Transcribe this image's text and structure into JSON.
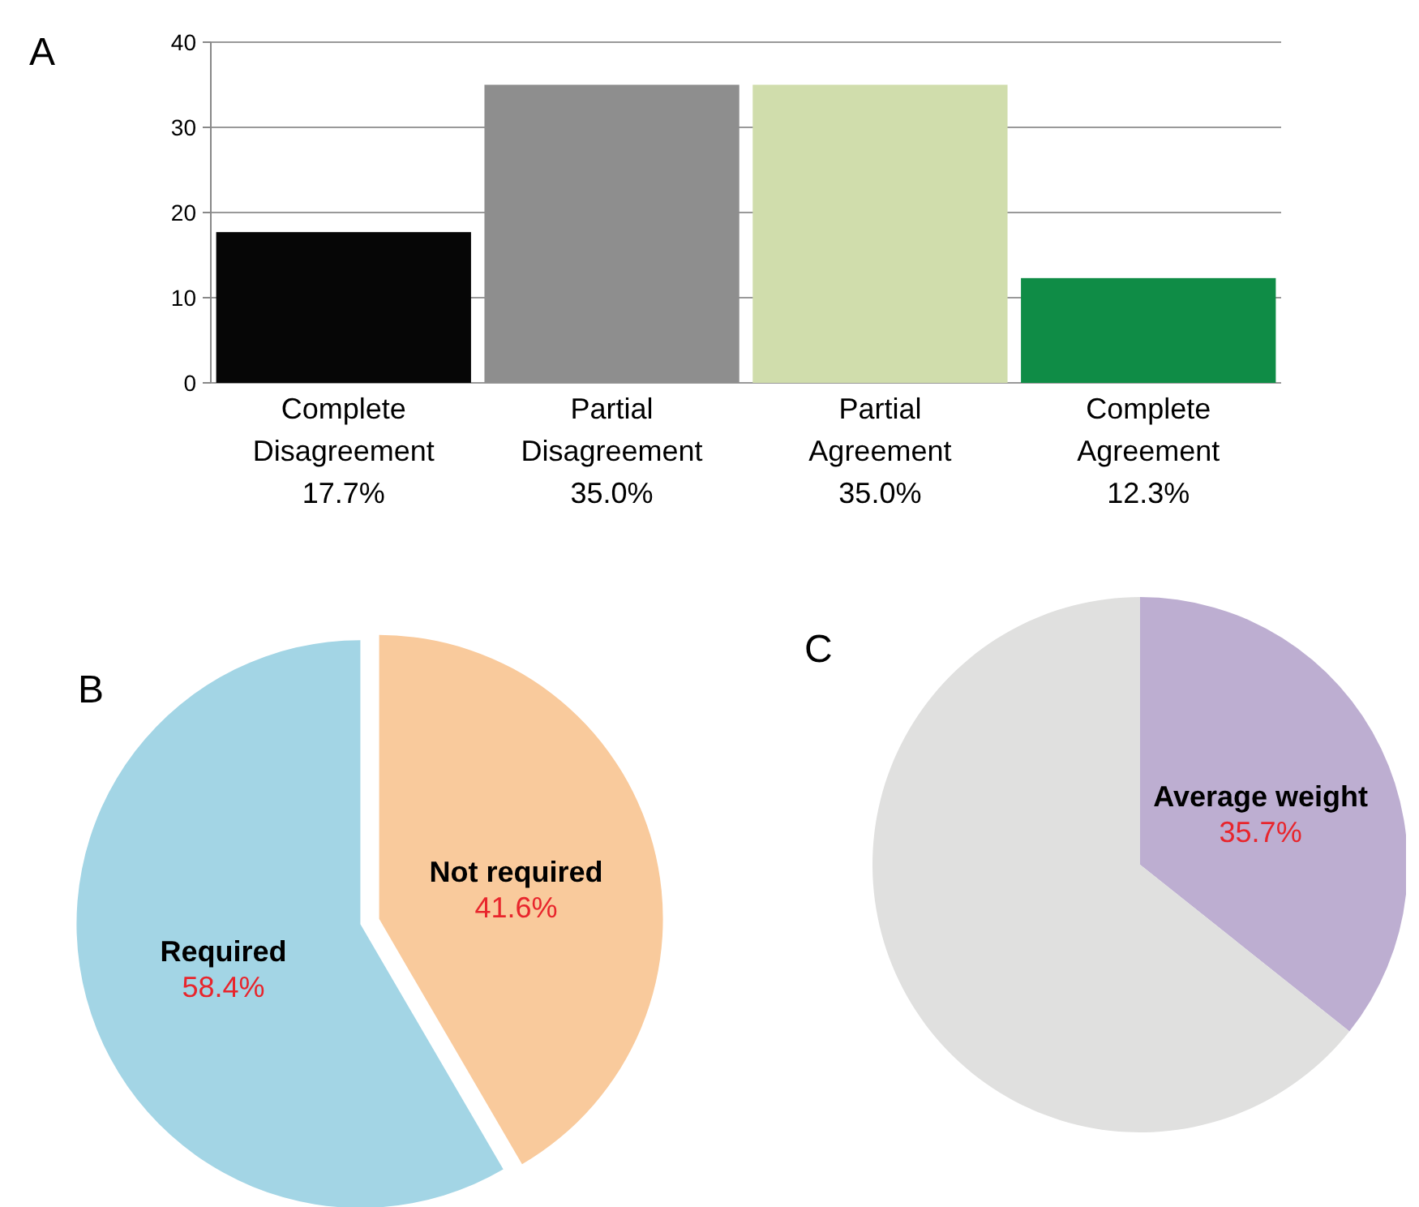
{
  "chart_data": [
    {
      "type": "bar",
      "title": "A",
      "categories": [
        "Complete Disagreement",
        "Partial Disagreement",
        "Partial Agreement",
        "Complete Agreement"
      ],
      "values": [
        17.7,
        35.0,
        35.0,
        12.3
      ],
      "colors": [
        "#060606",
        "#8e8e8e",
        "#d0ddac",
        "#0f8c46"
      ],
      "value_labels": [
        "17.7%",
        "35.0%",
        "35.0%",
        "12.3%"
      ],
      "ylim": [
        0,
        40
      ],
      "yticks": [
        0,
        10,
        20,
        30,
        40
      ],
      "grid": "y"
    },
    {
      "type": "pie",
      "title": "B",
      "categories": [
        "Not required",
        "Required"
      ],
      "values": [
        41.6,
        58.4
      ],
      "colors": [
        "#f9ca9c",
        "#a3d5e5"
      ],
      "value_labels": [
        "41.6%",
        "58.4%"
      ]
    },
    {
      "type": "pie",
      "title": "C",
      "categories": [
        "Average weight",
        null
      ],
      "values": [
        35.7,
        64.3
      ],
      "colors": [
        "#bdaed1",
        "#e0e0df"
      ],
      "value_labels": [
        "35.7%",
        null
      ]
    }
  ]
}
